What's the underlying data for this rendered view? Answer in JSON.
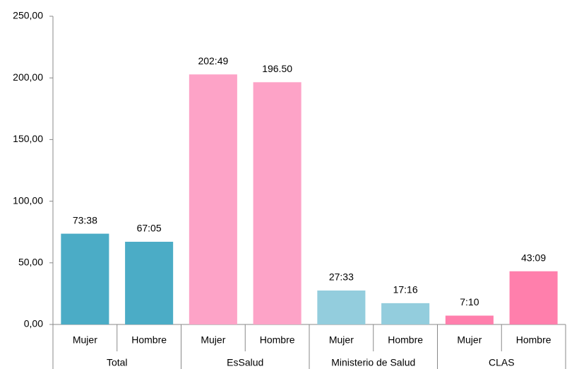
{
  "chart_data": {
    "type": "bar",
    "categories": [
      "Mujer",
      "Hombre",
      "Mujer",
      "Hombre",
      "Mujer",
      "Hombre",
      "Mujer",
      "Hombre"
    ],
    "groups": [
      "Total",
      "EsSalud",
      "Ministerio de Salud",
      "CLAS"
    ],
    "values": [
      73.63,
      67.08,
      202.82,
      196.5,
      27.55,
      17.27,
      7.17,
      43.15
    ],
    "value_labels": [
      "73:38",
      "67:05",
      "202:49",
      "196.50",
      "27:33",
      "17:16",
      "7:10",
      "43:09"
    ],
    "colors": [
      "#4bacc6",
      "#4bacc6",
      "#fda3c7",
      "#fda3c7",
      "#93cddd",
      "#93cddd",
      "#ff7fac",
      "#ff7fac"
    ],
    "ylim": [
      0,
      250
    ],
    "yticks": [
      {
        "value": 0,
        "label": "0,00"
      },
      {
        "value": 50,
        "label": "50,00"
      },
      {
        "value": 100,
        "label": "100,00"
      },
      {
        "value": 150,
        "label": "150,00"
      },
      {
        "value": 200,
        "label": "200,00"
      },
      {
        "value": 250,
        "label": "250,00"
      }
    ],
    "grid": false
  }
}
